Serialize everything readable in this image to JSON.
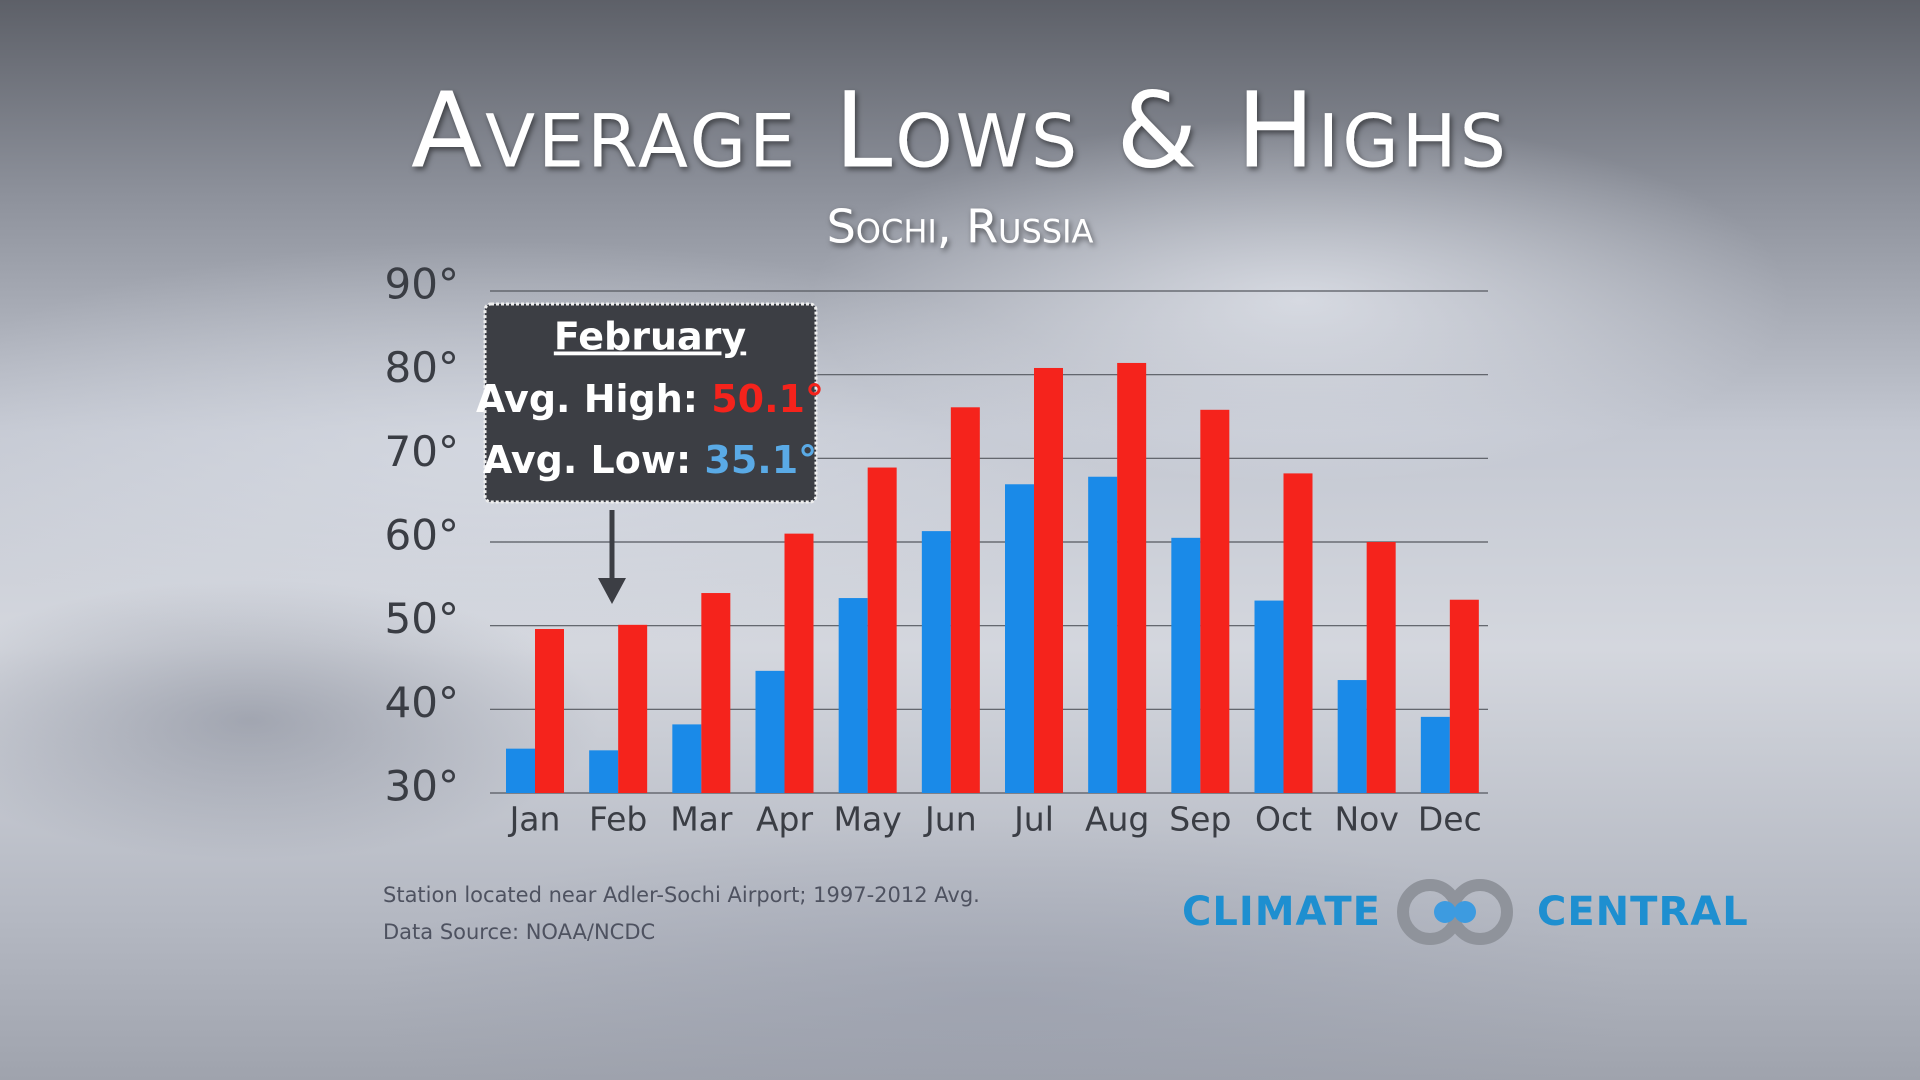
{
  "chart_data": {
    "type": "bar",
    "title": "Average Lows & Highs",
    "subtitle": "Sochi, Russia",
    "categories": [
      "Jan",
      "Feb",
      "Mar",
      "Apr",
      "May",
      "Jun",
      "Jul",
      "Aug",
      "Sep",
      "Oct",
      "Nov",
      "Dec"
    ],
    "series": [
      {
        "color": "#1a8ae8",
        "values": [
          35.3,
          35.1,
          38.2,
          44.6,
          53.3,
          61.3,
          66.9,
          67.8,
          60.5,
          53.0,
          43.5,
          39.1
        ]
      },
      {
        "color": "#f5231c",
        "values": [
          49.6,
          50.1,
          53.9,
          61.0,
          68.9,
          76.1,
          80.8,
          81.4,
          75.8,
          68.2,
          60.0,
          53.1
        ]
      }
    ],
    "ylim": [
      30,
      90
    ],
    "yticks": [
      {
        "value": 30,
        "label": "30°"
      },
      {
        "value": 40,
        "label": "40°"
      },
      {
        "value": 50,
        "label": "50°"
      },
      {
        "value": 60,
        "label": "60°"
      },
      {
        "value": 70,
        "label": "70°"
      },
      {
        "value": 80,
        "label": "80°"
      },
      {
        "value": 90,
        "label": "90°"
      }
    ],
    "grid": true,
    "annotation": {
      "title": "February",
      "high_label": "Avg. High:",
      "high_value": "50.1°",
      "low_label": "Avg. Low:",
      "low_value": "35.1°"
    },
    "notes": [
      "Station located near Adler-Sochi Airport; 1997-2012 Avg.",
      "Data Source: NOAA/NCDC"
    ],
    "logo": [
      "CLIMATE",
      "CENTRAL"
    ]
  }
}
